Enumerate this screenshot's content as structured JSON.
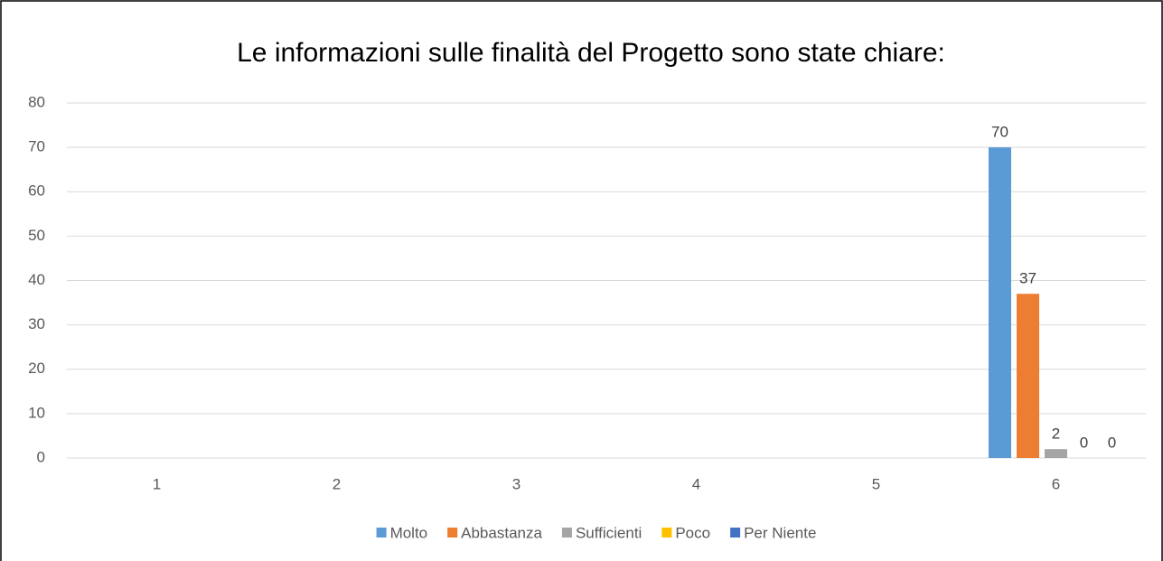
{
  "chart_data": {
    "type": "bar",
    "title": "Le informazioni sulle finalità del Progetto sono state chiare:",
    "categories": [
      "1",
      "2",
      "3",
      "4",
      "5",
      "6"
    ],
    "series": [
      {
        "name": "Molto",
        "color": "#5b9bd5",
        "values": [
          null,
          null,
          null,
          null,
          null,
          70
        ]
      },
      {
        "name": "Abbastanza",
        "color": "#ed7d31",
        "values": [
          null,
          null,
          null,
          null,
          null,
          37
        ]
      },
      {
        "name": "Sufficienti",
        "color": "#a5a5a5",
        "values": [
          null,
          null,
          null,
          null,
          null,
          2
        ]
      },
      {
        "name": "Poco",
        "color": "#ffc000",
        "values": [
          null,
          null,
          null,
          null,
          null,
          0
        ]
      },
      {
        "name": "Per Niente",
        "color": "#4472c4",
        "values": [
          null,
          null,
          null,
          null,
          null,
          0
        ]
      }
    ],
    "ylim": [
      0,
      80
    ],
    "yticks": [
      0,
      10,
      20,
      30,
      40,
      50,
      60,
      70,
      80
    ],
    "grid": true,
    "legend": "bottom"
  }
}
